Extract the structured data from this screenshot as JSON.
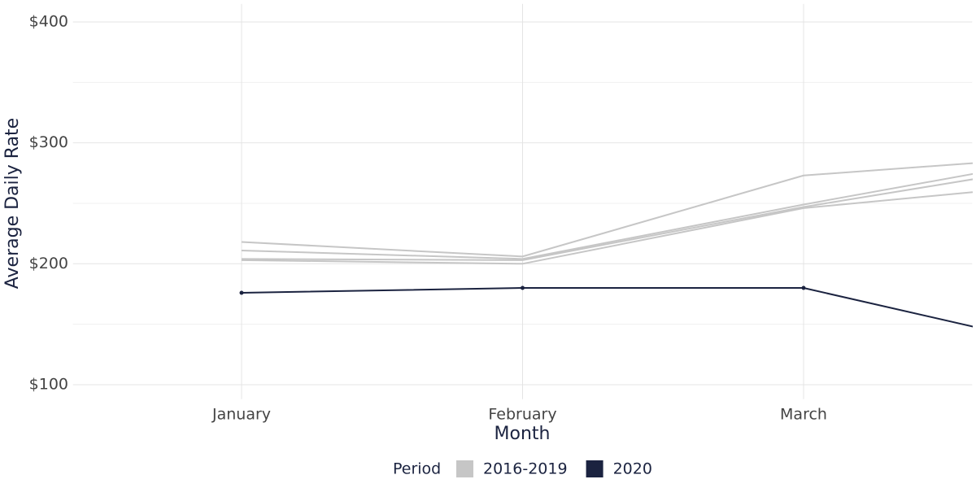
{
  "chart_data": {
    "type": "line",
    "x_label": "Month",
    "y_label": "Average Daily Rate",
    "categories": [
      "January",
      "February",
      "March",
      null
    ],
    "xlim": [
      0.4,
      3.6
    ],
    "ylim": [
      88,
      415
    ],
    "yticks": [
      {
        "value": 100,
        "label": "$100"
      },
      {
        "value": 200,
        "label": "$200"
      },
      {
        "value": 300,
        "label": "$300"
      },
      {
        "value": 400,
        "label": "$400"
      }
    ],
    "yminor": [
      150,
      250,
      350
    ],
    "grid": true,
    "legend_title": "Period",
    "legend": "bottom",
    "series": [
      {
        "name": "2016-2019",
        "color": "#c6c6c6",
        "lines": [
          [
            218,
            206,
            273,
            290
          ],
          [
            211,
            204,
            249,
            291
          ],
          [
            204,
            203,
            247,
            285
          ],
          [
            203,
            200,
            246,
            268
          ]
        ]
      },
      {
        "name": "2020",
        "color": "#1b2340",
        "markers": true,
        "values": [
          176,
          180,
          180,
          127
        ]
      }
    ]
  }
}
